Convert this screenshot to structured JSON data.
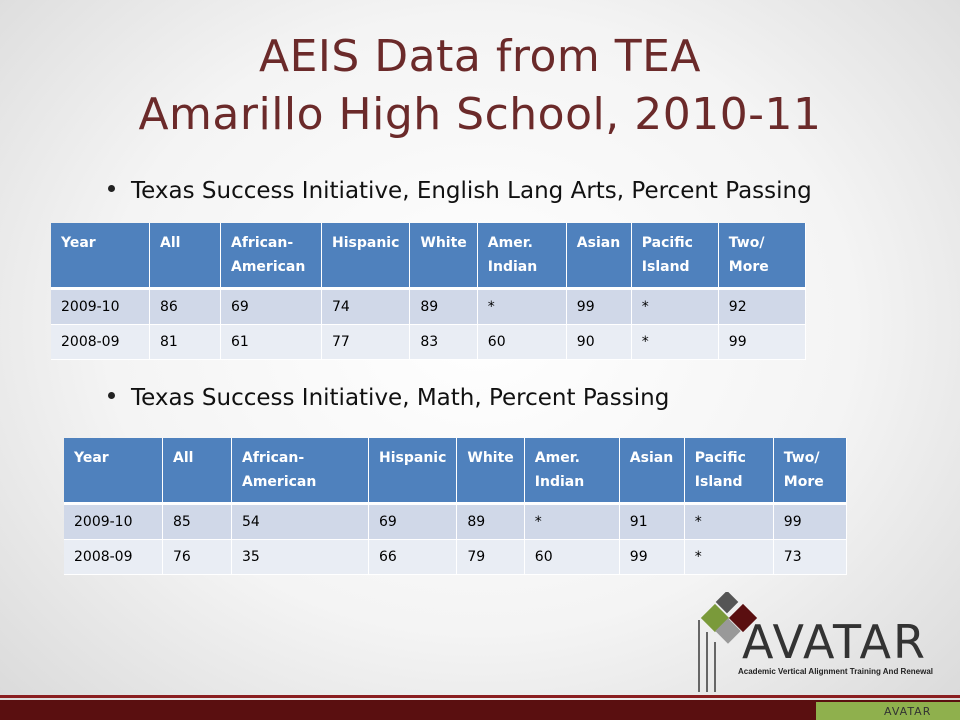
{
  "slide": {
    "title_line1": "AEIS Data from TEA",
    "title_line2": "Amarillo High School, 2010-11",
    "accent_color": "#6b2a2a",
    "bullet1": "Texas Success Initiative, English Lang Arts, Percent Passing",
    "bullet2": "Texas Success Initiative, Math, Percent Passing"
  },
  "table1": {
    "headers": [
      "Year",
      "All",
      "African- American",
      "Hispanic",
      "White",
      "Amer. Indian",
      "Asian",
      "Pacific Island",
      "Two/ More"
    ],
    "rows": [
      [
        "2009-10",
        "86",
        "69",
        "74",
        "89",
        "*",
        "99",
        "*",
        "92"
      ],
      [
        "2008-09",
        "81",
        "61",
        "77",
        "83",
        "60",
        "90",
        "*",
        "99"
      ]
    ]
  },
  "table2": {
    "headers": [
      "Year",
      "All",
      "African- American",
      "Hispanic",
      "White",
      "Amer. Indian",
      "Asian",
      "Pacific Island",
      "Two/ More"
    ],
    "rows": [
      [
        "2009-10",
        "85",
        "54",
        "69",
        "89",
        "*",
        "91",
        "*",
        "99"
      ],
      [
        "2008-09",
        "76",
        "35",
        "66",
        "79",
        "60",
        "99",
        "*",
        "73"
      ]
    ]
  },
  "logo": {
    "name": "AVATAR",
    "tagline": "Academic Vertical Alignment Training And Renewal",
    "footer_name": "AVATAR"
  }
}
